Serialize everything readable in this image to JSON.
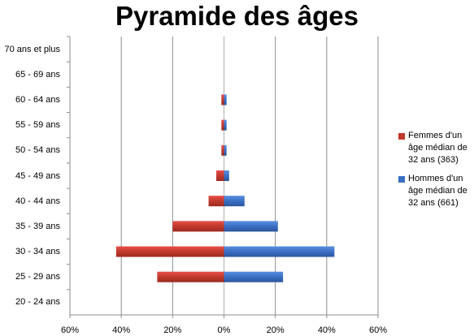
{
  "chart_data": {
    "type": "bar",
    "orientation": "horizontal",
    "title": "Pyramide des âges",
    "categories": [
      "70 ans et plus",
      "65 - 69 ans",
      "60 - 64 ans",
      "55 - 59 ans",
      "50 - 54 ans",
      "45 - 49 ans",
      "40 - 44 ans",
      "35 - 39 ans",
      "30 - 34 ans",
      "25 - 29 ans",
      "20 - 24 ans"
    ],
    "xlim": [
      -60,
      60
    ],
    "xticks": [
      -60,
      -40,
      -20,
      0,
      20,
      40,
      60
    ],
    "xtick_labels": [
      "60%",
      "40%",
      "20%",
      "0%",
      "20%",
      "40%",
      "60%"
    ],
    "grid": true,
    "legend_position": "right",
    "series": [
      {
        "name": "Femmes d'un âge médian de 32 ans (363)",
        "color": "#c0392b",
        "side": "left",
        "values": [
          0,
          0,
          1,
          1,
          1,
          3,
          6,
          20,
          42,
          26,
          0
        ]
      },
      {
        "name": "Hommes d'un âge médian de 32 ans (661)",
        "color": "#3a6fc4",
        "side": "right",
        "values": [
          0,
          0,
          1,
          1,
          1,
          2,
          8,
          21,
          43,
          23,
          0
        ]
      }
    ]
  }
}
